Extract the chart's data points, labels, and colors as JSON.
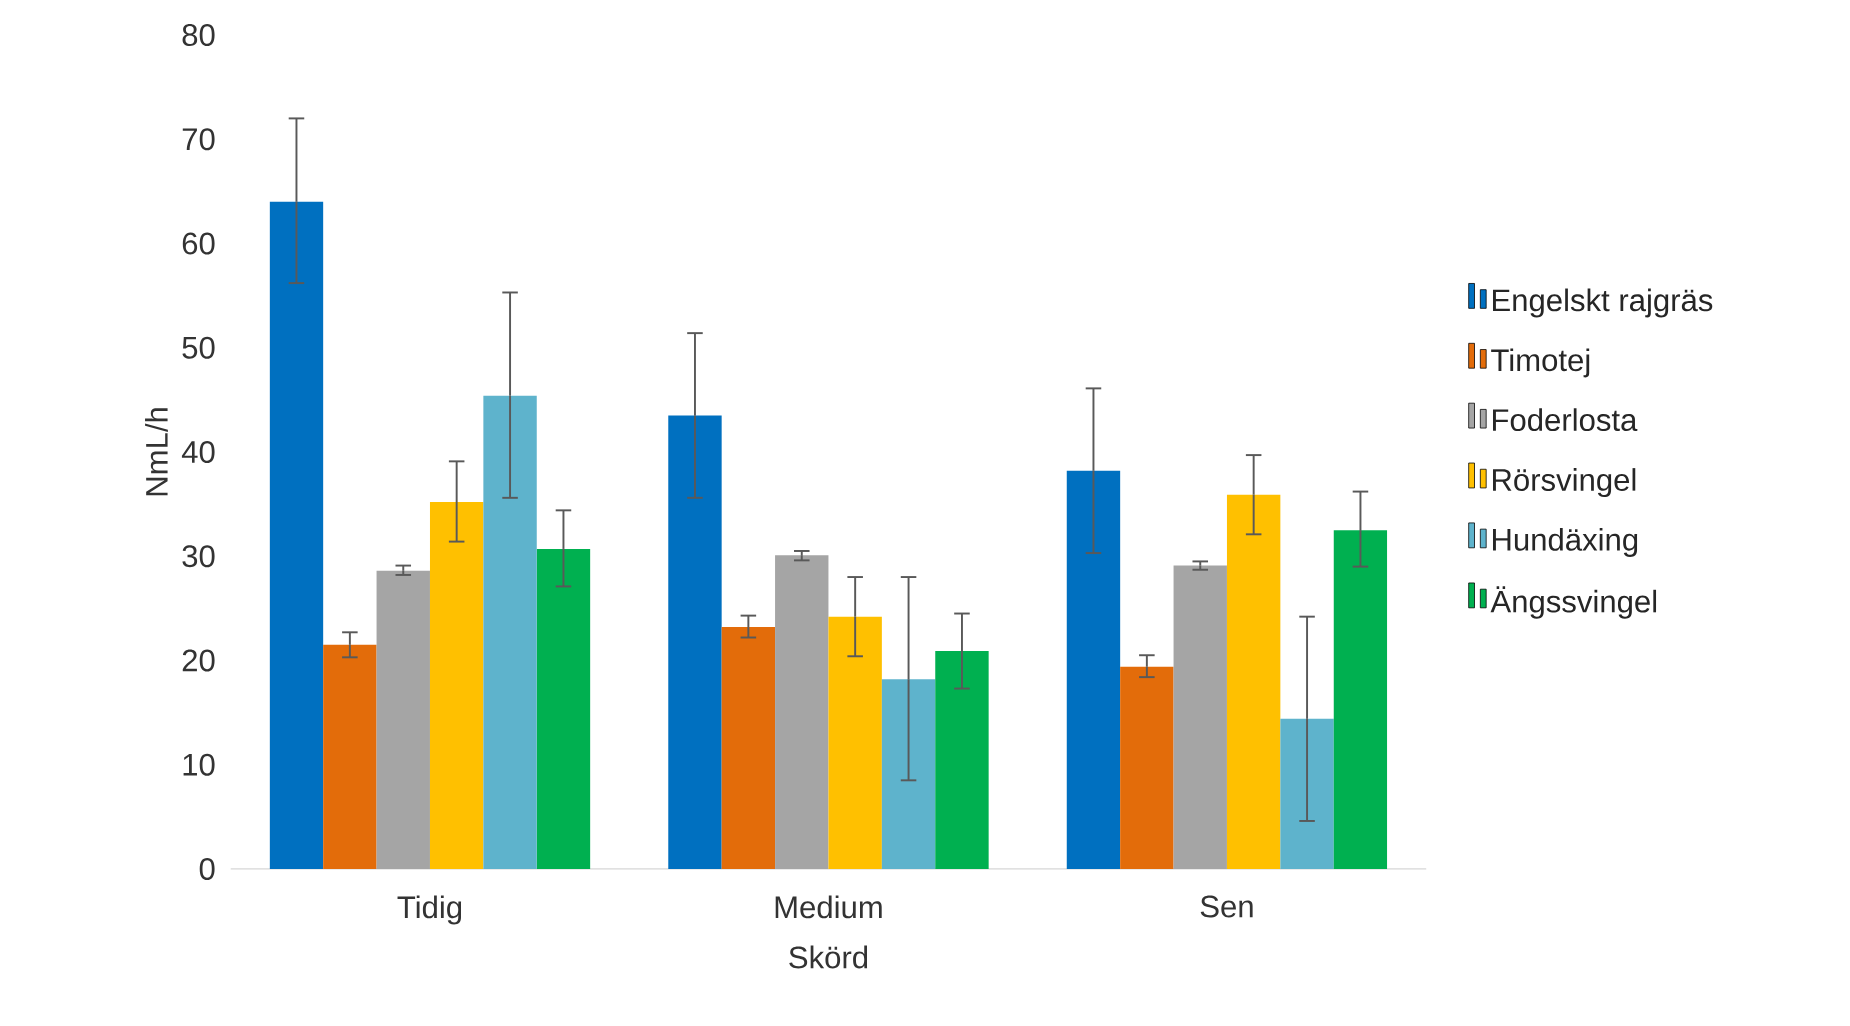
{
  "chart_data": {
    "type": "bar",
    "xlabel": "Skörd",
    "ylabel": "NmL/h",
    "categories": [
      "Tidig",
      "Medium",
      "Sen"
    ],
    "series": [
      {
        "name": "Engelskt rajgräs",
        "color": "#0070c0",
        "values": [
          64.0,
          43.5,
          38.2
        ],
        "errors": [
          [
            56.2,
            72.0
          ],
          [
            35.6,
            51.4
          ],
          [
            30.3,
            46.1
          ]
        ]
      },
      {
        "name": "Timotej",
        "color": "#e36c0a",
        "values": [
          21.5,
          23.2,
          19.4
        ],
        "errors": [
          [
            20.3,
            22.7
          ],
          [
            22.2,
            24.3
          ],
          [
            18.4,
            20.5
          ]
        ]
      },
      {
        "name": "Foderlosta",
        "color": "#a5a5a5",
        "values": [
          28.6,
          30.1,
          29.1
        ],
        "errors": [
          [
            28.2,
            29.1
          ],
          [
            29.6,
            30.5
          ],
          [
            28.7,
            29.5
          ]
        ]
      },
      {
        "name": "Rörsvingel",
        "color": "#ffc000",
        "values": [
          35.2,
          24.2,
          35.9
        ],
        "errors": [
          [
            31.4,
            39.1
          ],
          [
            20.4,
            28.0
          ],
          [
            32.1,
            39.7
          ]
        ]
      },
      {
        "name": "Hundäxing",
        "color": "#5eb3cc",
        "values": [
          45.4,
          18.2,
          14.4
        ],
        "errors": [
          [
            35.6,
            55.3
          ],
          [
            8.5,
            28.0
          ],
          [
            4.6,
            24.2
          ]
        ]
      },
      {
        "name": "Ängssvingel",
        "color": "#00b050",
        "values": [
          30.7,
          20.9,
          32.5
        ],
        "errors": [
          [
            27.1,
            34.4
          ],
          [
            17.3,
            24.5
          ],
          [
            29.0,
            36.2
          ]
        ]
      }
    ],
    "ylim": [
      0,
      80
    ],
    "yticks": [
      0,
      10,
      20,
      30,
      40,
      50,
      60,
      70,
      80
    ],
    "grid": false,
    "legend": "right"
  }
}
